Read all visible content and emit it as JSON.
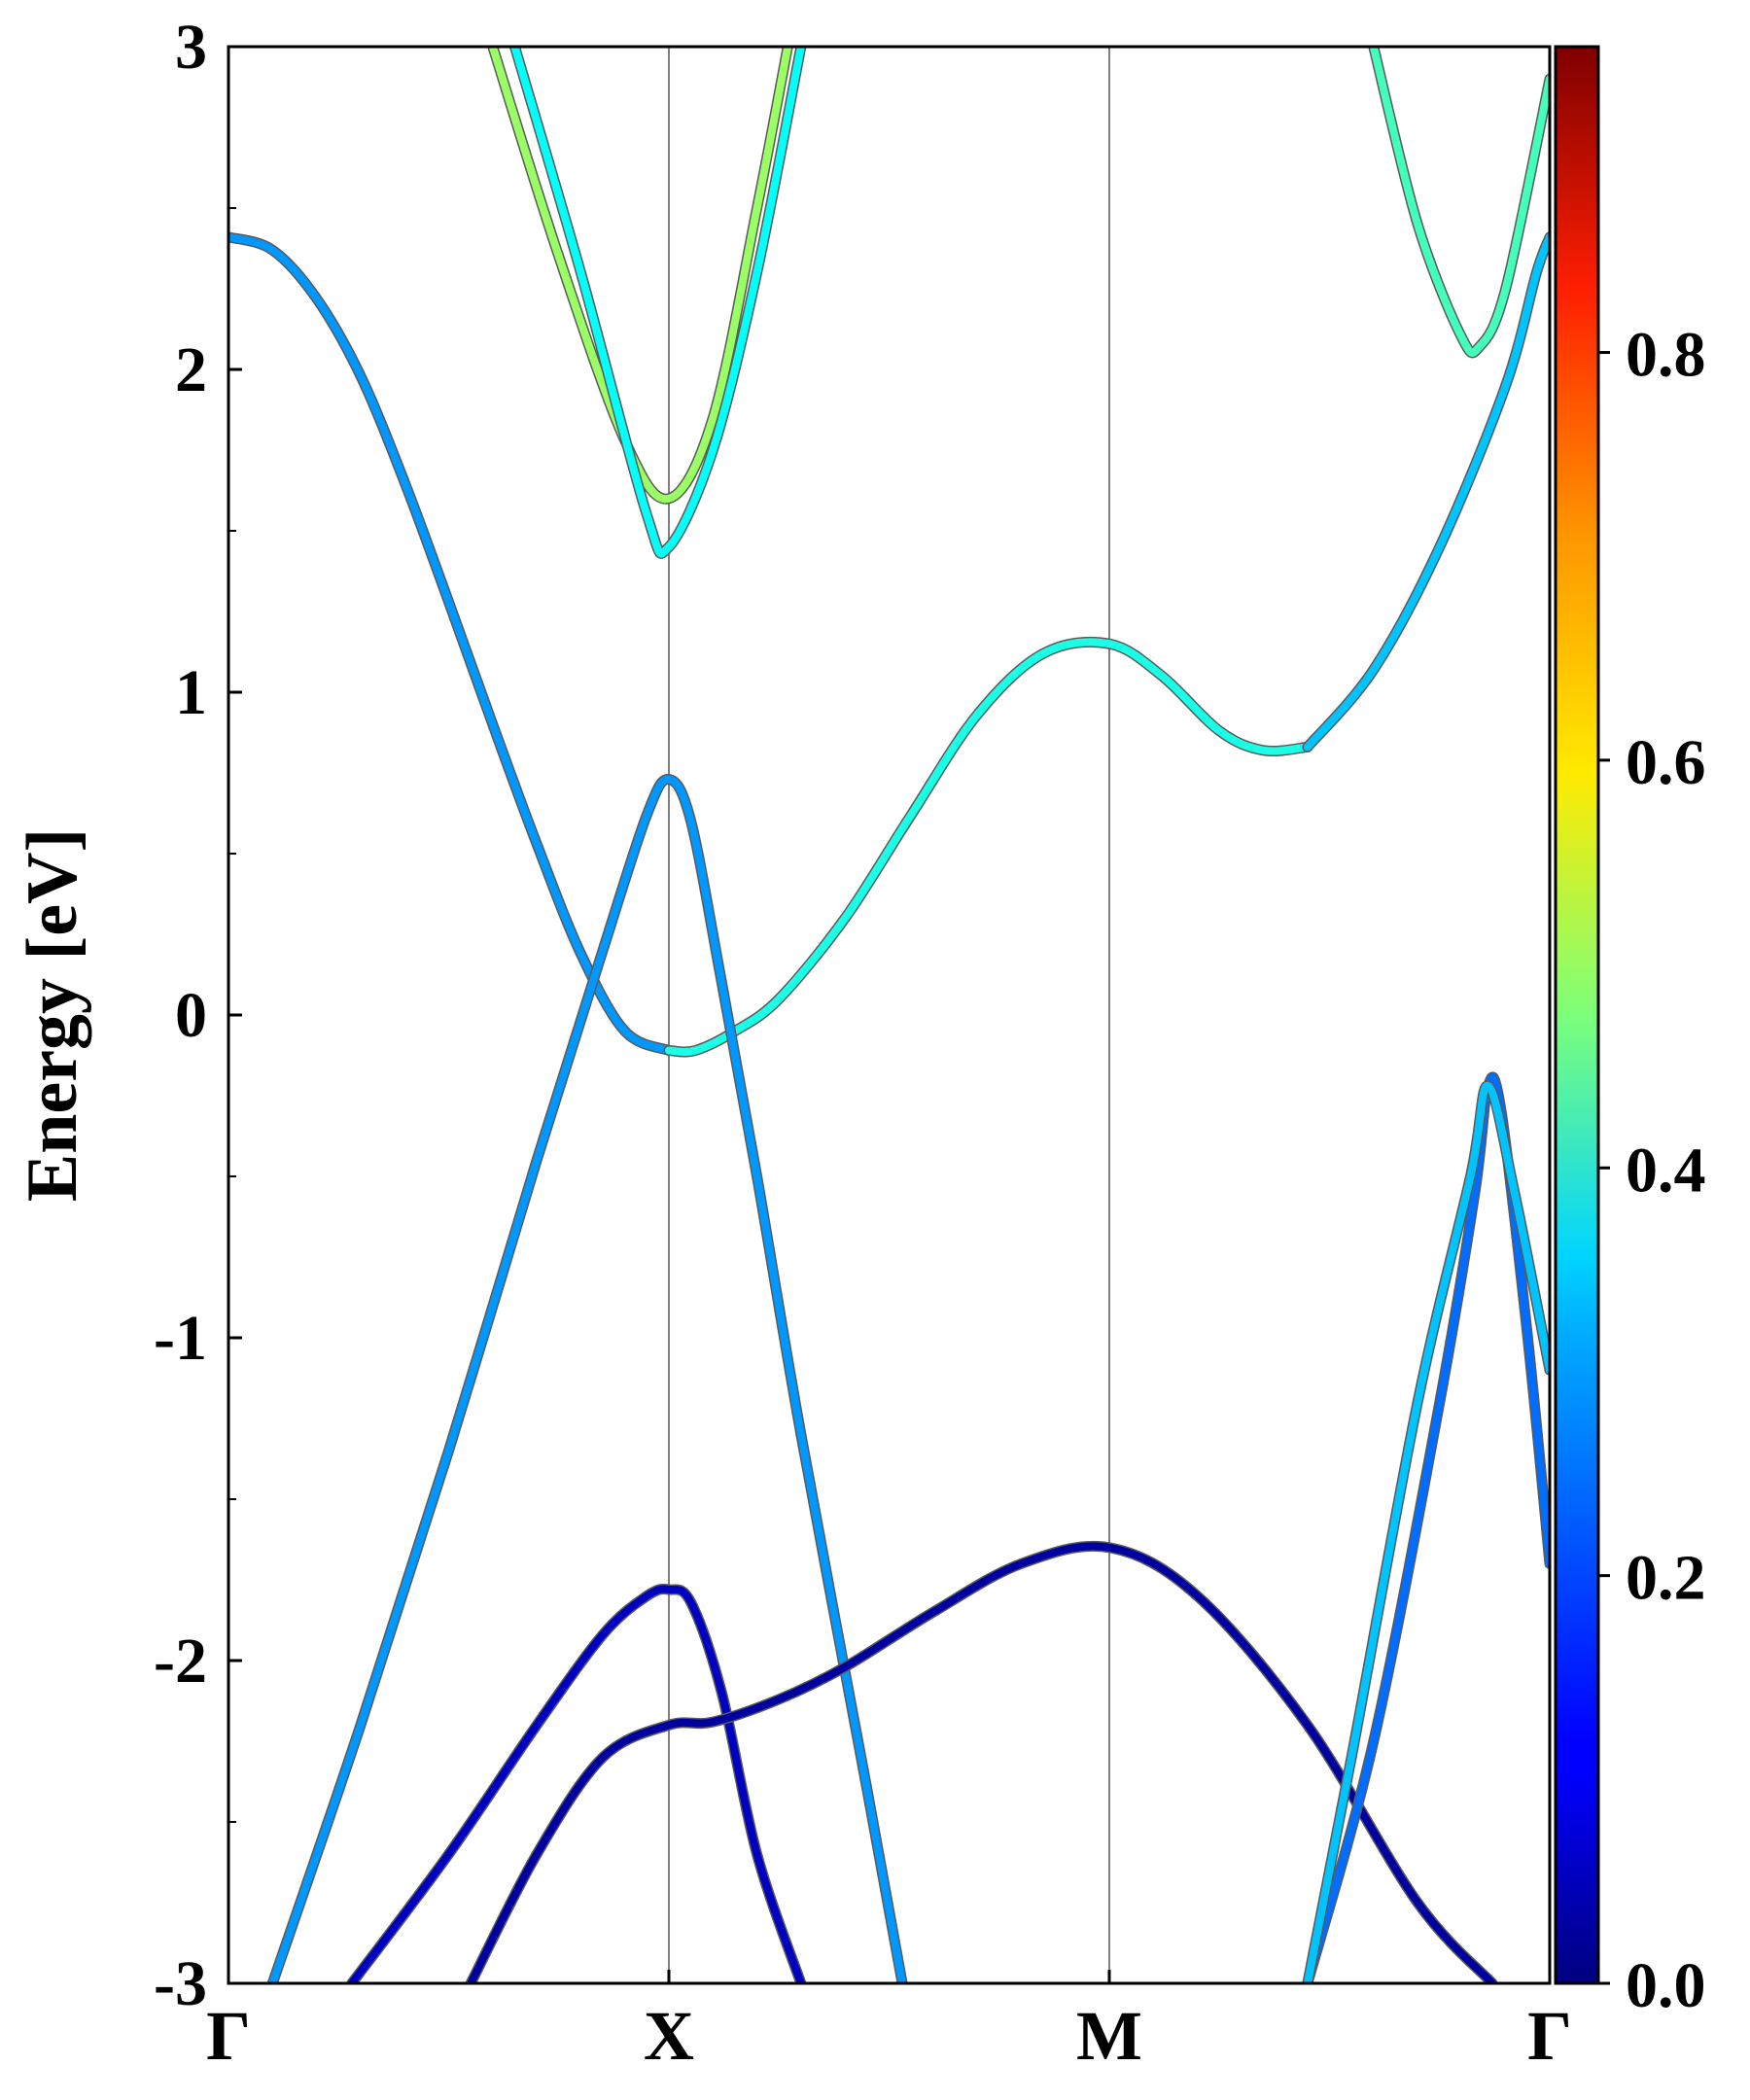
{
  "chart_data": {
    "type": "line",
    "title": "",
    "xlabel": "",
    "ylabel": "Energy [eV]",
    "ylim": [
      -3,
      3
    ],
    "xlim": [
      0,
      3
    ],
    "grid": false,
    "legend": "none",
    "x_ticks": [
      {
        "x": 0,
        "label": "Γ"
      },
      {
        "x": 1,
        "label": "X"
      },
      {
        "x": 2,
        "label": "M"
      },
      {
        "x": 3,
        "label": "Γ"
      }
    ],
    "y_ticks": [
      {
        "y": 3,
        "label": "3"
      },
      {
        "y": 2,
        "label": "2"
      },
      {
        "y": 1,
        "label": "1"
      },
      {
        "y": 0,
        "label": "0"
      },
      {
        "y": -1,
        "label": "-1"
      },
      {
        "y": -2,
        "label": "-2"
      },
      {
        "y": -3,
        "label": "-3"
      }
    ],
    "colorbar": {
      "colormap": "jet",
      "range": [
        0.0,
        0.95
      ],
      "ticks": [
        {
          "value": 0.0,
          "label": "0.0"
        },
        {
          "value": 0.2,
          "label": "0.2"
        },
        {
          "value": 0.4,
          "label": "0.4"
        },
        {
          "value": 0.6,
          "label": "0.6"
        },
        {
          "value": 0.8,
          "label": "0.8"
        }
      ]
    },
    "series": [
      {
        "weight": 0.26,
        "points": [
          [
            0,
            2.41
          ],
          [
            0.1,
            2.37
          ],
          [
            0.2,
            2.22
          ],
          [
            0.3,
            1.98
          ],
          [
            0.4,
            1.65
          ],
          [
            0.5,
            1.28
          ],
          [
            0.6,
            0.9
          ],
          [
            0.7,
            0.53
          ],
          [
            0.8,
            0.19
          ],
          [
            0.9,
            -0.05
          ],
          [
            1.0,
            -0.11
          ]
        ]
      },
      {
        "weight": 0.38,
        "points": [
          [
            1.0,
            -0.11
          ],
          [
            1.06,
            -0.11
          ],
          [
            1.15,
            -0.05
          ],
          [
            1.25,
            0.05
          ],
          [
            1.4,
            0.3
          ],
          [
            1.55,
            0.62
          ],
          [
            1.7,
            0.93
          ],
          [
            1.85,
            1.12
          ],
          [
            2.0,
            1.15
          ],
          [
            2.12,
            1.05
          ],
          [
            2.25,
            0.88
          ],
          [
            2.35,
            0.82
          ],
          [
            2.45,
            0.83
          ]
        ]
      },
      {
        "weight": 0.3,
        "points": [
          [
            2.45,
            0.83
          ],
          [
            2.6,
            1.07
          ],
          [
            2.75,
            1.45
          ],
          [
            2.9,
            1.95
          ],
          [
            2.97,
            2.3
          ],
          [
            3.0,
            2.41
          ]
        ]
      },
      {
        "weight": 0.26,
        "points": [
          [
            0.1,
            -3.0
          ],
          [
            0.3,
            -2.2
          ],
          [
            0.5,
            -1.35
          ],
          [
            0.7,
            -0.45
          ],
          [
            0.85,
            0.2
          ],
          [
            0.95,
            0.62
          ],
          [
            1.0,
            0.73
          ],
          [
            1.05,
            0.6
          ],
          [
            1.12,
            0.1
          ],
          [
            1.2,
            -0.5
          ],
          [
            1.3,
            -1.3
          ],
          [
            1.45,
            -2.4
          ],
          [
            1.53,
            -3.0
          ]
        ]
      },
      {
        "weight": 0.06,
        "points": [
          [
            0.28,
            -3.0
          ],
          [
            0.5,
            -2.6
          ],
          [
            0.7,
            -2.2
          ],
          [
            0.85,
            -1.92
          ],
          [
            0.95,
            -1.8
          ],
          [
            1.0,
            -1.78
          ],
          [
            1.05,
            -1.82
          ],
          [
            1.12,
            -2.1
          ],
          [
            1.2,
            -2.6
          ],
          [
            1.3,
            -3.0
          ]
        ]
      },
      {
        "weight": 0.03,
        "points": [
          [
            0.55,
            -3.0
          ],
          [
            0.7,
            -2.6
          ],
          [
            0.85,
            -2.3
          ],
          [
            1.0,
            -2.2
          ],
          [
            1.1,
            -2.19
          ],
          [
            1.25,
            -2.12
          ],
          [
            1.4,
            -2.02
          ],
          [
            1.6,
            -1.85
          ],
          [
            1.8,
            -1.7
          ],
          [
            2.0,
            -1.65
          ],
          [
            2.2,
            -1.8
          ],
          [
            2.45,
            -2.2
          ],
          [
            2.7,
            -2.75
          ],
          [
            2.87,
            -3.0
          ]
        ]
      },
      {
        "weight": 0.22,
        "points": [
          [
            2.45,
            -3.0
          ],
          [
            2.6,
            -2.25
          ],
          [
            2.75,
            -1.2
          ],
          [
            2.83,
            -0.55
          ],
          [
            2.86,
            -0.22
          ],
          [
            2.89,
            -0.3
          ],
          [
            2.95,
            -1.0
          ],
          [
            3.0,
            -1.7
          ]
        ]
      },
      {
        "weight": 0.3,
        "points": [
          [
            2.45,
            -3.0
          ],
          [
            2.55,
            -2.3
          ],
          [
            2.7,
            -1.2
          ],
          [
            2.82,
            -0.5
          ],
          [
            2.86,
            -0.22
          ],
          [
            2.92,
            -0.55
          ],
          [
            3.0,
            -1.1
          ]
        ]
      },
      {
        "weight": 0.5,
        "points": [
          [
            0.6,
            3.0
          ],
          [
            0.75,
            2.35
          ],
          [
            0.9,
            1.78
          ],
          [
            1.0,
            1.6
          ],
          [
            1.1,
            1.85
          ],
          [
            1.2,
            2.5
          ],
          [
            1.27,
            3.0
          ]
        ]
      },
      {
        "weight": 0.36,
        "points": [
          [
            0.65,
            3.0
          ],
          [
            0.8,
            2.3
          ],
          [
            0.95,
            1.55
          ],
          [
            1.0,
            1.45
          ],
          [
            1.1,
            1.75
          ],
          [
            1.2,
            2.3
          ],
          [
            1.3,
            3.0
          ]
        ]
      },
      {
        "weight": 0.42,
        "points": [
          [
            2.6,
            3.0
          ],
          [
            2.7,
            2.45
          ],
          [
            2.8,
            2.1
          ],
          [
            2.84,
            2.07
          ],
          [
            2.9,
            2.25
          ],
          [
            3.0,
            2.9
          ]
        ]
      }
    ]
  }
}
